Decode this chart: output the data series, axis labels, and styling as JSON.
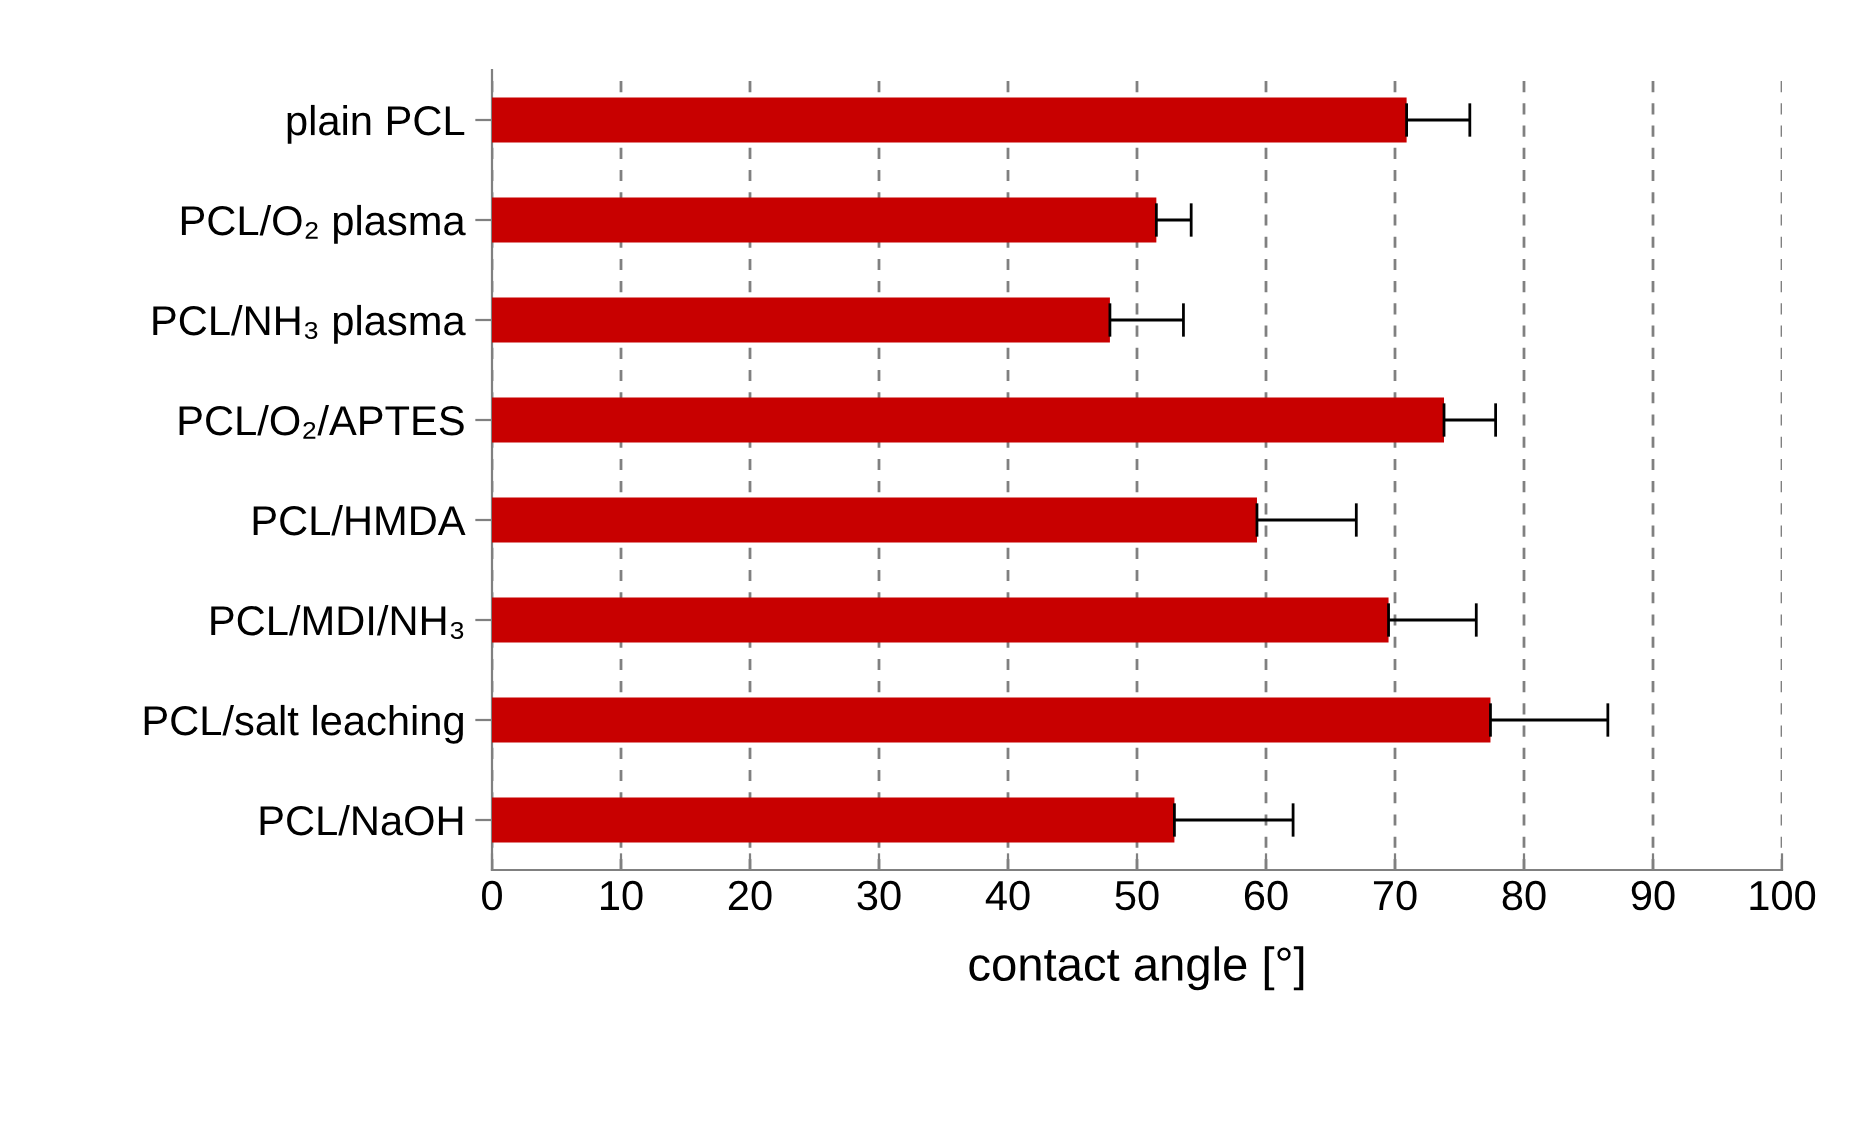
{
  "chart_data": {
    "type": "bar",
    "orientation": "horizontal",
    "categories": [
      "plain PCL",
      "PCL/O₂ plasma",
      "PCL/NH₃ plasma",
      "PCL/O₂/APTES",
      "PCL/HMDA",
      "PCL/MDI/NH₃",
      "PCL/salt leaching",
      "PCL/NaOH"
    ],
    "values": [
      70.9,
      51.5,
      47.9,
      73.8,
      59.3,
      69.5,
      77.4,
      52.9
    ],
    "errors": [
      [
        70.9,
        75.8
      ],
      [
        51.5,
        54.2
      ],
      [
        47.9,
        53.6
      ],
      [
        73.8,
        77.8
      ],
      [
        59.3,
        67.0
      ],
      [
        69.5,
        76.3
      ],
      [
        77.4,
        86.5
      ],
      [
        52.9,
        62.1
      ]
    ],
    "color": "#c80000",
    "xlabel": "contact angle [°]",
    "xlim": [
      0,
      100
    ],
    "xticks": [
      0,
      10,
      20,
      30,
      40,
      50,
      60,
      70,
      80,
      90,
      100
    ],
    "grid": "x",
    "line_style": "dashed",
    "legend": false
  }
}
